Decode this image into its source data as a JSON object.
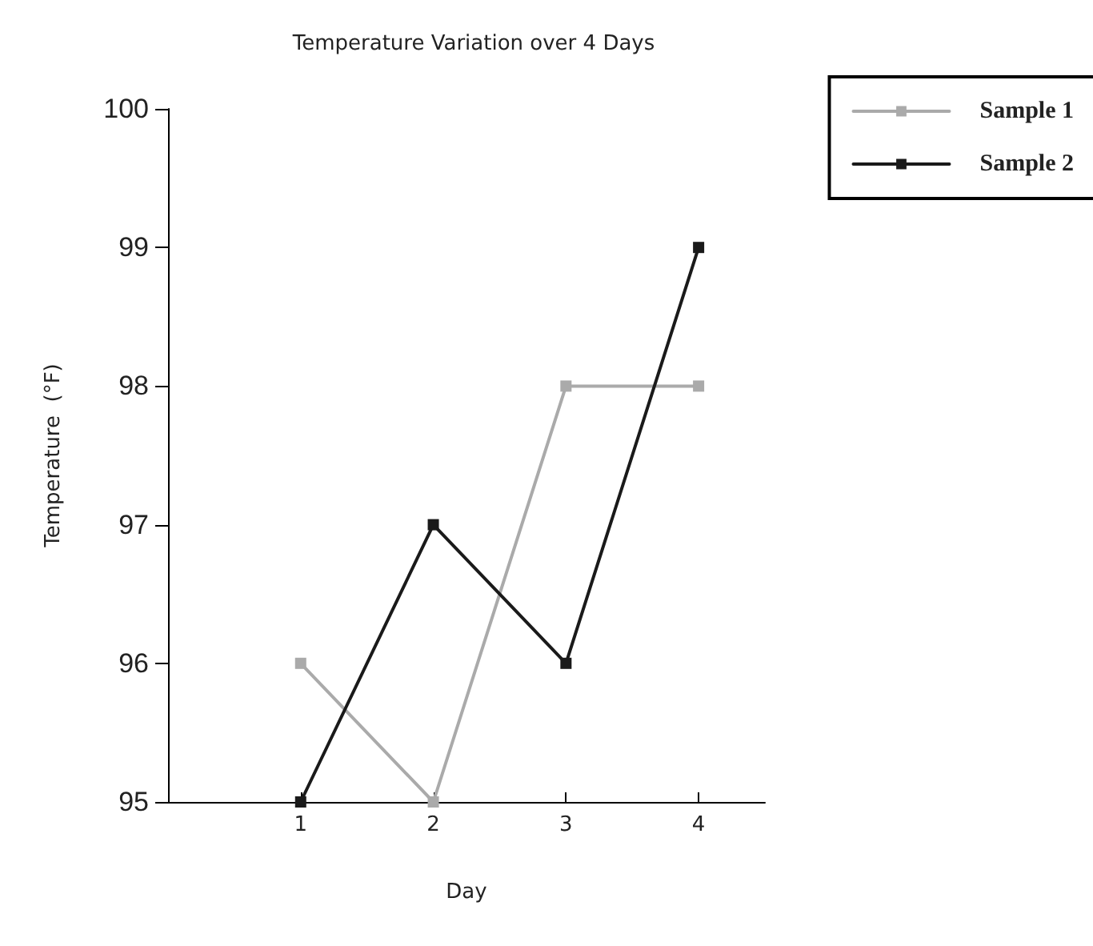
{
  "chart_data": {
    "type": "line",
    "title": "Temperature Variation over 4 Days",
    "xlabel": "Day",
    "ylabel": "Temperature  (°F)",
    "x": [
      1,
      2,
      3,
      4
    ],
    "xlim": [
      0,
      4.5
    ],
    "xticks": [
      1,
      2,
      3,
      4
    ],
    "ylim": [
      95,
      100
    ],
    "yticks": [
      95,
      96,
      97,
      98,
      99,
      100
    ],
    "series": [
      {
        "name": "Sample 1",
        "color": "#aaaaaa",
        "values": [
          96,
          95,
          98,
          98
        ]
      },
      {
        "name": "Sample 2",
        "color": "#1a1a1a",
        "values": [
          95,
          97,
          96,
          99
        ]
      }
    ],
    "marker": "square",
    "line_style": "solid",
    "grid": false,
    "legend": "top right"
  }
}
